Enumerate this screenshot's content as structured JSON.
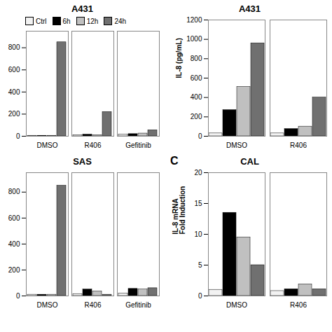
{
  "chart_data": [
    {
      "type": "bar",
      "title": "A431",
      "categories": [
        "DMSO",
        "R406",
        "Gefitinib"
      ],
      "series": [
        {
          "name": "Ctrl",
          "color": "#f2f2f2",
          "values": [
            5,
            10,
            15
          ]
        },
        {
          "name": "6h",
          "color": "#000000",
          "values": [
            5,
            15,
            20
          ]
        },
        {
          "name": "12h",
          "color": "#c0c0c0",
          "values": [
            5,
            10,
            25
          ]
        },
        {
          "name": "24h",
          "color": "#707070",
          "values": [
            850,
            220,
            55
          ]
        }
      ],
      "ylim": [
        0,
        950
      ],
      "yticks": [
        0,
        200,
        400,
        600,
        800
      ],
      "legend": "upper left"
    },
    {
      "type": "bar",
      "title": "A431",
      "ylabel": "IL-8 (pg/mL)",
      "categories": [
        "DMSO",
        "R406"
      ],
      "series": [
        {
          "name": "Ctrl",
          "color": "#f2f2f2",
          "values": [
            30,
            30
          ]
        },
        {
          "name": "6h",
          "color": "#000000",
          "values": [
            270,
            75
          ]
        },
        {
          "name": "12h",
          "color": "#c0c0c0",
          "values": [
            510,
            100
          ]
        },
        {
          "name": "24h",
          "color": "#707070",
          "values": [
            960,
            400
          ]
        }
      ],
      "ylim": [
        0,
        1200
      ],
      "yticks": [
        0,
        200,
        400,
        600,
        800,
        1000,
        1200
      ]
    },
    {
      "type": "bar",
      "title": "SAS",
      "categories": [
        "DMSO",
        "R406",
        "Gefitinib"
      ],
      "series": [
        {
          "name": "Ctrl",
          "color": "#f2f2f2",
          "values": [
            10,
            15,
            20
          ]
        },
        {
          "name": "6h",
          "color": "#000000",
          "values": [
            10,
            50,
            55
          ]
        },
        {
          "name": "12h",
          "color": "#c0c0c0",
          "values": [
            10,
            35,
            50
          ]
        },
        {
          "name": "24h",
          "color": "#707070",
          "values": [
            850,
            10,
            60
          ]
        }
      ],
      "ylim": [
        0,
        950
      ],
      "yticks": [
        0,
        200,
        400,
        600,
        800
      ]
    },
    {
      "type": "bar",
      "title": "CAL",
      "ylabel": "IL-8 mRNA\nFold Induction",
      "annotation": "C",
      "categories": [
        "DMSO",
        "R406"
      ],
      "series": [
        {
          "name": "Ctrl",
          "color": "#f2f2f2",
          "values": [
            1.0,
            0.8
          ]
        },
        {
          "name": "6h",
          "color": "#000000",
          "values": [
            13.5,
            1.1
          ]
        },
        {
          "name": "12h",
          "color": "#c0c0c0",
          "values": [
            9.5,
            1.9
          ]
        },
        {
          "name": "24h",
          "color": "#707070",
          "values": [
            5.0,
            1.1
          ]
        }
      ],
      "ylim": [
        0,
        20
      ],
      "yticks": [
        0,
        5,
        10,
        15,
        20
      ]
    }
  ]
}
